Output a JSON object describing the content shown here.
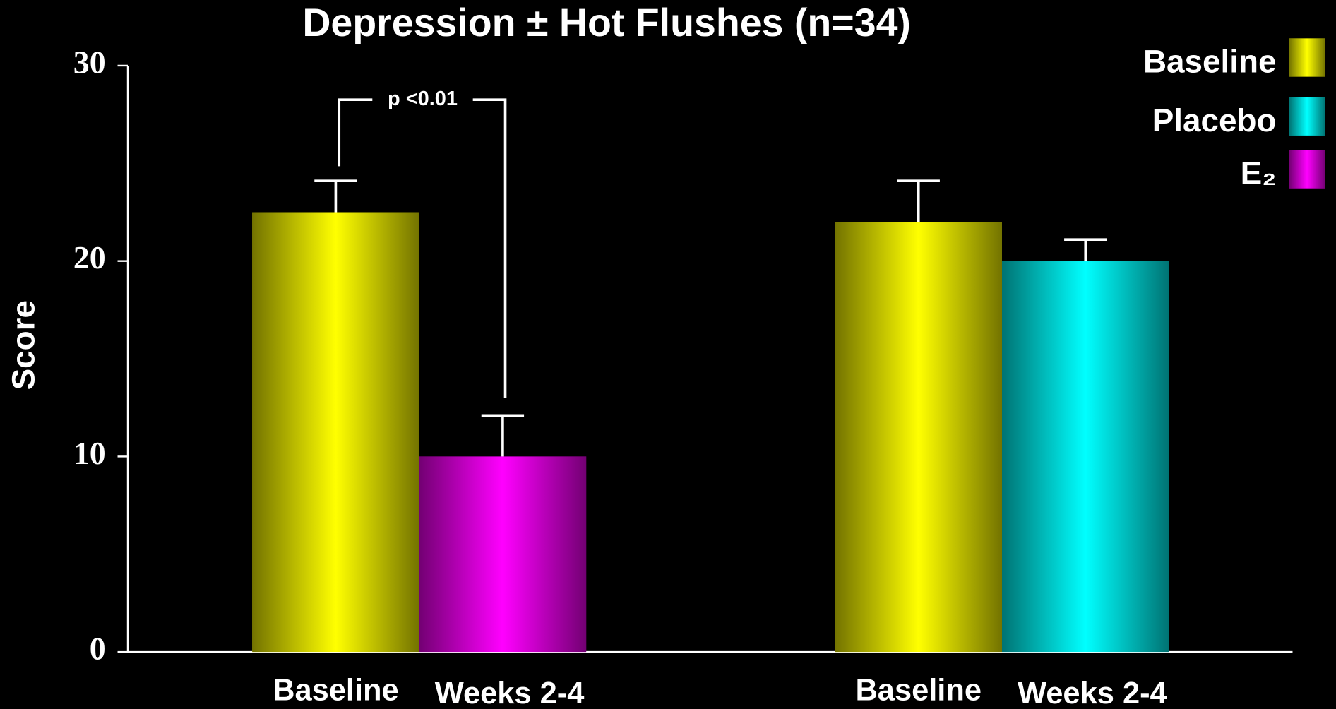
{
  "chart_data": {
    "type": "bar",
    "title": "Depression ± Hot Flushes (n=34)",
    "y_label": "Score",
    "categories": [
      "Baseline",
      "Weeks 2-4",
      "Baseline",
      "Weeks 2-4"
    ],
    "series": [
      {
        "name": "Baseline",
        "color": "#ffff00",
        "values": [
          22.5,
          null,
          22,
          null
        ],
        "errors": [
          1.6,
          null,
          2.1,
          null
        ]
      },
      {
        "name": "Placebo",
        "color": "#00ffff",
        "values": [
          null,
          null,
          null,
          20
        ],
        "errors": [
          null,
          null,
          null,
          1.1
        ]
      },
      {
        "name": "E₂",
        "color": "#ff00ff",
        "values": [
          null,
          10,
          null,
          null
        ],
        "errors": [
          null,
          2.1,
          null,
          null
        ]
      }
    ],
    "annotation": "p <0.01",
    "ylim": [
      0,
      30
    ],
    "yticks": [
      0,
      10,
      20,
      30
    ],
    "legend": "top-right"
  }
}
